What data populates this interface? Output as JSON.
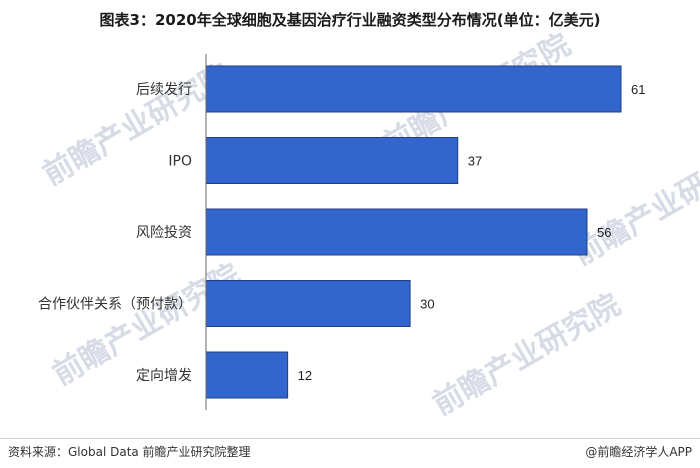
{
  "chart_data": {
    "type": "bar",
    "orientation": "horizontal",
    "title": "图表3：2020年全球细胞及基因治疗行业融资类型分布情况(单位：亿美元)",
    "categories": [
      "后续发行",
      "IPO",
      "风险投资",
      "合作伙伴关系（预付款）",
      "定向增发"
    ],
    "values": [
      61,
      37,
      56,
      30,
      12
    ],
    "xlim": [
      0,
      61
    ],
    "grid": false,
    "colors": {
      "bar": "#3366cc",
      "bar_edge": "#1f3f80"
    }
  },
  "footer": {
    "source": "资料来源：Global Data 前瞻产业研究院整理",
    "brand": "@前瞻经济学人APP"
  },
  "watermark": {
    "text": "前瞻产业研究院"
  }
}
